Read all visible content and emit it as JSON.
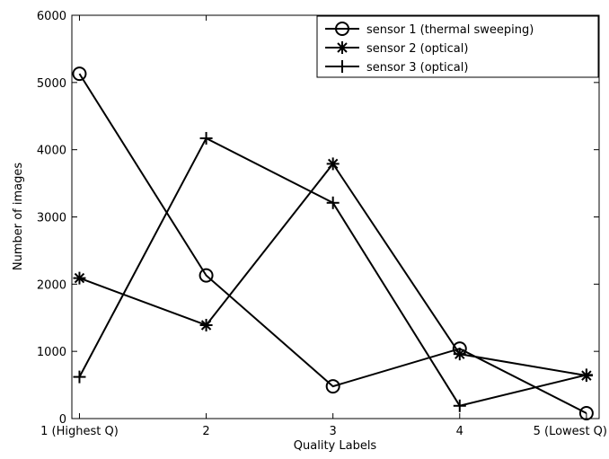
{
  "chart_data": {
    "type": "line",
    "xlabel": "Quality Labels",
    "ylabel": "Number of images",
    "x": [
      1,
      2,
      3,
      4,
      5
    ],
    "x_tick_labels": [
      "1 (Highest Q)",
      "2",
      "3",
      "4",
      "5 (Lowest Q)"
    ],
    "xlim": [
      0.94,
      5.1
    ],
    "ylim": [
      0,
      6000
    ],
    "y_ticks": [
      0,
      1000,
      2000,
      3000,
      4000,
      5000,
      6000
    ],
    "grid": false,
    "legend_position": "top-right",
    "series": [
      {
        "name": "sensor 1 (thermal sweeping)",
        "marker": "circle",
        "values": [
          5130,
          2130,
          480,
          1040,
          80
        ]
      },
      {
        "name": "sensor 2 (optical)",
        "marker": "asterisk",
        "values": [
          2090,
          1390,
          3790,
          960,
          640
        ]
      },
      {
        "name": "sensor 3 (optical)",
        "marker": "plus",
        "values": [
          620,
          4170,
          3210,
          190,
          650
        ]
      }
    ]
  }
}
